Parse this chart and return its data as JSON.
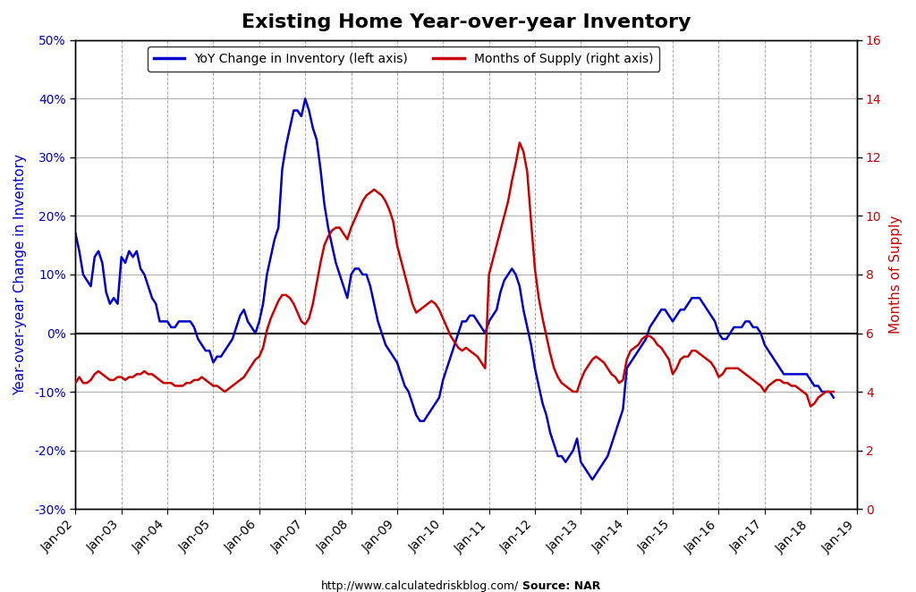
{
  "title": "Existing Home Year-over-year Inventory",
  "legend_blue": "YoY Change in Inventory (left axis)",
  "legend_red": "Months of Supply (right axis)",
  "ylabel_left": "Year-over-year Change in Inventory",
  "ylabel_right": "Months of Supply",
  "xlabel_ticks": [
    "Jan-02",
    "Jan-03",
    "Jan-04",
    "Jan-05",
    "Jan-06",
    "Jan-07",
    "Jan-08",
    "Jan-09",
    "Jan-10",
    "Jan-11",
    "Jan-12",
    "Jan-13",
    "Jan-14",
    "Jan-15",
    "Jan-16",
    "Jan-17",
    "Jan-18",
    "Jan-19"
  ],
  "footer_url": "http://www.calculatedriskblog.com/",
  "footer_source": "Source: NAR",
  "ylim_left": [
    -0.3,
    0.5
  ],
  "ylim_right": [
    0,
    16
  ],
  "blue_color": "#0000CC",
  "red_color": "#CC0000",
  "background_color": "#FFFFFF",
  "grid_color": "#AAAAAA",
  "title_fontsize": 16,
  "axis_label_fontsize": 11,
  "tick_fontsize": 10,
  "yoy_dates": [
    2002.0,
    2002.083,
    2002.167,
    2002.25,
    2002.333,
    2002.417,
    2002.5,
    2002.583,
    2002.667,
    2002.75,
    2002.833,
    2002.917,
    2003.0,
    2003.083,
    2003.167,
    2003.25,
    2003.333,
    2003.417,
    2003.5,
    2003.583,
    2003.667,
    2003.75,
    2003.833,
    2003.917,
    2004.0,
    2004.083,
    2004.167,
    2004.25,
    2004.333,
    2004.417,
    2004.5,
    2004.583,
    2004.667,
    2004.75,
    2004.833,
    2004.917,
    2005.0,
    2005.083,
    2005.167,
    2005.25,
    2005.333,
    2005.417,
    2005.5,
    2005.583,
    2005.667,
    2005.75,
    2005.833,
    2005.917,
    2006.0,
    2006.083,
    2006.167,
    2006.25,
    2006.333,
    2006.417,
    2006.5,
    2006.583,
    2006.667,
    2006.75,
    2006.833,
    2006.917,
    2007.0,
    2007.083,
    2007.167,
    2007.25,
    2007.333,
    2007.417,
    2007.5,
    2007.583,
    2007.667,
    2007.75,
    2007.833,
    2007.917,
    2008.0,
    2008.083,
    2008.167,
    2008.25,
    2008.333,
    2008.417,
    2008.5,
    2008.583,
    2008.667,
    2008.75,
    2008.833,
    2008.917,
    2009.0,
    2009.083,
    2009.167,
    2009.25,
    2009.333,
    2009.417,
    2009.5,
    2009.583,
    2009.667,
    2009.75,
    2009.833,
    2009.917,
    2010.0,
    2010.083,
    2010.167,
    2010.25,
    2010.333,
    2010.417,
    2010.5,
    2010.583,
    2010.667,
    2010.75,
    2010.833,
    2010.917,
    2011.0,
    2011.083,
    2011.167,
    2011.25,
    2011.333,
    2011.417,
    2011.5,
    2011.583,
    2011.667,
    2011.75,
    2011.833,
    2011.917,
    2012.0,
    2012.083,
    2012.167,
    2012.25,
    2012.333,
    2012.417,
    2012.5,
    2012.583,
    2012.667,
    2012.75,
    2012.833,
    2012.917,
    2013.0,
    2013.083,
    2013.167,
    2013.25,
    2013.333,
    2013.417,
    2013.5,
    2013.583,
    2013.667,
    2013.75,
    2013.833,
    2013.917,
    2014.0,
    2014.083,
    2014.167,
    2014.25,
    2014.333,
    2014.417,
    2014.5,
    2014.583,
    2014.667,
    2014.75,
    2014.833,
    2014.917,
    2015.0,
    2015.083,
    2015.167,
    2015.25,
    2015.333,
    2015.417,
    2015.5,
    2015.583,
    2015.667,
    2015.75,
    2015.833,
    2015.917,
    2016.0,
    2016.083,
    2016.167,
    2016.25,
    2016.333,
    2016.417,
    2016.5,
    2016.583,
    2016.667,
    2016.75,
    2016.833,
    2016.917,
    2017.0,
    2017.083,
    2017.167,
    2017.25,
    2017.333,
    2017.417,
    2017.5,
    2017.583,
    2017.667,
    2017.75,
    2017.833,
    2017.917,
    2018.0,
    2018.083,
    2018.167,
    2018.25,
    2018.333,
    2018.417,
    2018.5
  ],
  "yoy_values": [
    0.17,
    0.14,
    0.1,
    0.09,
    0.08,
    0.13,
    0.14,
    0.12,
    0.07,
    0.05,
    0.06,
    0.05,
    0.13,
    0.12,
    0.14,
    0.13,
    0.14,
    0.11,
    0.1,
    0.08,
    0.06,
    0.05,
    0.02,
    0.02,
    0.02,
    0.01,
    0.01,
    0.02,
    0.02,
    0.02,
    0.02,
    0.01,
    -0.01,
    -0.02,
    -0.03,
    -0.03,
    -0.05,
    -0.04,
    -0.04,
    -0.03,
    -0.02,
    -0.01,
    0.01,
    0.03,
    0.04,
    0.02,
    0.01,
    0.0,
    0.02,
    0.05,
    0.1,
    0.13,
    0.16,
    0.18,
    0.28,
    0.32,
    0.35,
    0.38,
    0.38,
    0.37,
    0.4,
    0.38,
    0.35,
    0.33,
    0.28,
    0.22,
    0.18,
    0.15,
    0.12,
    0.1,
    0.08,
    0.06,
    0.1,
    0.11,
    0.11,
    0.1,
    0.1,
    0.08,
    0.05,
    0.02,
    0.0,
    -0.02,
    -0.03,
    -0.04,
    -0.05,
    -0.07,
    -0.09,
    -0.1,
    -0.12,
    -0.14,
    -0.15,
    -0.15,
    -0.14,
    -0.13,
    -0.12,
    -0.11,
    -0.08,
    -0.06,
    -0.04,
    -0.02,
    0.0,
    0.02,
    0.02,
    0.03,
    0.03,
    0.02,
    0.01,
    0.0,
    0.02,
    0.03,
    0.04,
    0.07,
    0.09,
    0.1,
    0.11,
    0.1,
    0.08,
    0.04,
    0.01,
    -0.02,
    -0.06,
    -0.09,
    -0.12,
    -0.14,
    -0.17,
    -0.19,
    -0.21,
    -0.21,
    -0.22,
    -0.21,
    -0.2,
    -0.18,
    -0.22,
    -0.23,
    -0.24,
    -0.25,
    -0.24,
    -0.23,
    -0.22,
    -0.21,
    -0.19,
    -0.17,
    -0.15,
    -0.13,
    -0.06,
    -0.05,
    -0.04,
    -0.03,
    -0.02,
    -0.01,
    0.01,
    0.02,
    0.03,
    0.04,
    0.04,
    0.03,
    0.02,
    0.03,
    0.04,
    0.04,
    0.05,
    0.06,
    0.06,
    0.06,
    0.05,
    0.04,
    0.03,
    0.02,
    0.0,
    -0.01,
    -0.01,
    0.0,
    0.01,
    0.01,
    0.01,
    0.02,
    0.02,
    0.01,
    0.01,
    0.0,
    -0.02,
    -0.03,
    -0.04,
    -0.05,
    -0.06,
    -0.07,
    -0.07,
    -0.07,
    -0.07,
    -0.07,
    -0.07,
    -0.07,
    -0.08,
    -0.09,
    -0.09,
    -0.1,
    -0.1,
    -0.1,
    -0.11
  ],
  "mos_dates": [
    2002.0,
    2002.083,
    2002.167,
    2002.25,
    2002.333,
    2002.417,
    2002.5,
    2002.583,
    2002.667,
    2002.75,
    2002.833,
    2002.917,
    2003.0,
    2003.083,
    2003.167,
    2003.25,
    2003.333,
    2003.417,
    2003.5,
    2003.583,
    2003.667,
    2003.75,
    2003.833,
    2003.917,
    2004.0,
    2004.083,
    2004.167,
    2004.25,
    2004.333,
    2004.417,
    2004.5,
    2004.583,
    2004.667,
    2004.75,
    2004.833,
    2004.917,
    2005.0,
    2005.083,
    2005.167,
    2005.25,
    2005.333,
    2005.417,
    2005.5,
    2005.583,
    2005.667,
    2005.75,
    2005.833,
    2005.917,
    2006.0,
    2006.083,
    2006.167,
    2006.25,
    2006.333,
    2006.417,
    2006.5,
    2006.583,
    2006.667,
    2006.75,
    2006.833,
    2006.917,
    2007.0,
    2007.083,
    2007.167,
    2007.25,
    2007.333,
    2007.417,
    2007.5,
    2007.583,
    2007.667,
    2007.75,
    2007.833,
    2007.917,
    2008.0,
    2008.083,
    2008.167,
    2008.25,
    2008.333,
    2008.417,
    2008.5,
    2008.583,
    2008.667,
    2008.75,
    2008.833,
    2008.917,
    2009.0,
    2009.083,
    2009.167,
    2009.25,
    2009.333,
    2009.417,
    2009.5,
    2009.583,
    2009.667,
    2009.75,
    2009.833,
    2009.917,
    2010.0,
    2010.083,
    2010.167,
    2010.25,
    2010.333,
    2010.417,
    2010.5,
    2010.583,
    2010.667,
    2010.75,
    2010.833,
    2010.917,
    2011.0,
    2011.083,
    2011.167,
    2011.25,
    2011.333,
    2011.417,
    2011.5,
    2011.583,
    2011.667,
    2011.75,
    2011.833,
    2011.917,
    2012.0,
    2012.083,
    2012.167,
    2012.25,
    2012.333,
    2012.417,
    2012.5,
    2012.583,
    2012.667,
    2012.75,
    2012.833,
    2012.917,
    2013.0,
    2013.083,
    2013.167,
    2013.25,
    2013.333,
    2013.417,
    2013.5,
    2013.583,
    2013.667,
    2013.75,
    2013.833,
    2013.917,
    2014.0,
    2014.083,
    2014.167,
    2014.25,
    2014.333,
    2014.417,
    2014.5,
    2014.583,
    2014.667,
    2014.75,
    2014.833,
    2014.917,
    2015.0,
    2015.083,
    2015.167,
    2015.25,
    2015.333,
    2015.417,
    2015.5,
    2015.583,
    2015.667,
    2015.75,
    2015.833,
    2015.917,
    2016.0,
    2016.083,
    2016.167,
    2016.25,
    2016.333,
    2016.417,
    2016.5,
    2016.583,
    2016.667,
    2016.75,
    2016.833,
    2016.917,
    2017.0,
    2017.083,
    2017.167,
    2017.25,
    2017.333,
    2017.417,
    2017.5,
    2017.583,
    2017.667,
    2017.75,
    2017.833,
    2017.917,
    2018.0,
    2018.083,
    2018.167,
    2018.25,
    2018.333,
    2018.417,
    2018.5
  ],
  "mos_values": [
    4.3,
    4.5,
    4.3,
    4.3,
    4.4,
    4.6,
    4.7,
    4.6,
    4.5,
    4.4,
    4.4,
    4.5,
    4.5,
    4.4,
    4.5,
    4.5,
    4.6,
    4.6,
    4.7,
    4.6,
    4.6,
    4.5,
    4.4,
    4.3,
    4.3,
    4.3,
    4.2,
    4.2,
    4.2,
    4.3,
    4.3,
    4.4,
    4.4,
    4.5,
    4.4,
    4.3,
    4.2,
    4.2,
    4.1,
    4.0,
    4.1,
    4.2,
    4.3,
    4.4,
    4.5,
    4.7,
    4.9,
    5.1,
    5.2,
    5.5,
    6.1,
    6.5,
    6.8,
    7.1,
    7.3,
    7.3,
    7.2,
    7.0,
    6.7,
    6.4,
    6.3,
    6.5,
    7.0,
    7.7,
    8.4,
    9.0,
    9.3,
    9.5,
    9.6,
    9.6,
    9.4,
    9.2,
    9.6,
    9.9,
    10.2,
    10.5,
    10.7,
    10.8,
    10.9,
    10.8,
    10.7,
    10.5,
    10.2,
    9.8,
    9.0,
    8.5,
    8.0,
    7.5,
    7.0,
    6.7,
    6.8,
    6.9,
    7.0,
    7.1,
    7.0,
    6.8,
    6.5,
    6.2,
    5.9,
    5.7,
    5.5,
    5.4,
    5.5,
    5.4,
    5.3,
    5.2,
    5.0,
    4.8,
    8.0,
    8.5,
    9.0,
    9.5,
    10.0,
    10.5,
    11.2,
    11.8,
    12.5,
    12.2,
    11.5,
    9.8,
    8.2,
    7.2,
    6.5,
    5.9,
    5.3,
    4.8,
    4.5,
    4.3,
    4.2,
    4.1,
    4.0,
    4.0,
    4.4,
    4.7,
    4.9,
    5.1,
    5.2,
    5.1,
    5.0,
    4.8,
    4.6,
    4.5,
    4.3,
    4.4,
    5.1,
    5.4,
    5.5,
    5.6,
    5.8,
    5.9,
    5.9,
    5.8,
    5.6,
    5.5,
    5.3,
    5.1,
    4.6,
    4.8,
    5.1,
    5.2,
    5.2,
    5.4,
    5.4,
    5.3,
    5.2,
    5.1,
    5.0,
    4.8,
    4.5,
    4.6,
    4.8,
    4.8,
    4.8,
    4.8,
    4.7,
    4.6,
    4.5,
    4.4,
    4.3,
    4.2,
    4.0,
    4.2,
    4.3,
    4.4,
    4.4,
    4.3,
    4.3,
    4.2,
    4.2,
    4.1,
    4.0,
    3.9,
    3.5,
    3.6,
    3.8,
    3.9,
    4.0,
    4.0,
    4.0
  ]
}
